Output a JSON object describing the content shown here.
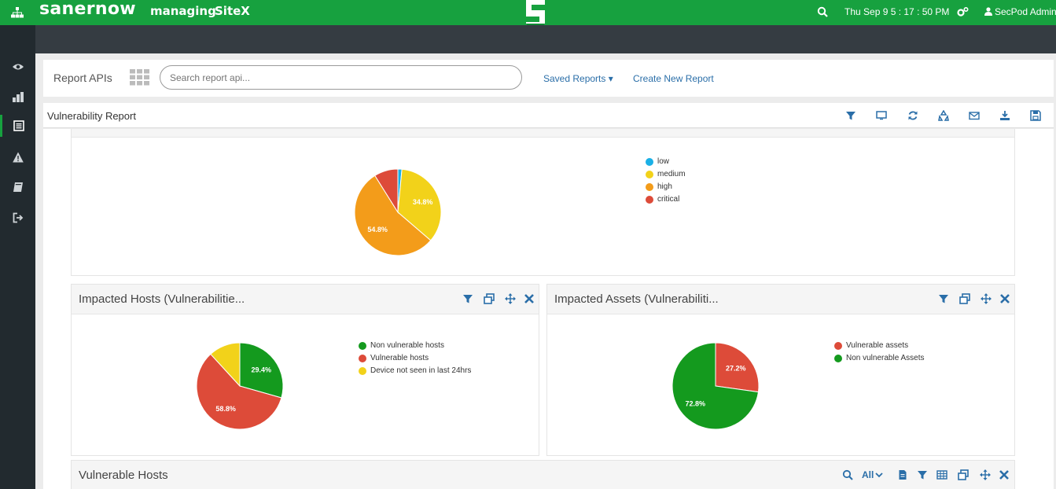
{
  "topbar": {
    "brand": "sanernow",
    "managing": "managing",
    "site": "SiteX",
    "clock": "Thu Sep 9  5 : 17 : 50 PM",
    "user": "SecPod Admin"
  },
  "apibar": {
    "title": "Report APIs",
    "search_placeholder": "Search report api...",
    "saved_reports": "Saved Reports ▾",
    "create_new": "Create New Report"
  },
  "report": {
    "title": "Vulnerability Report"
  },
  "panels": {
    "impacted_hosts": {
      "title": "Impacted Hosts (Vulnerabilitie..."
    },
    "impacted_assets": {
      "title": "Impacted Assets (Vulnerabiliti..."
    },
    "vulnerable_hosts": {
      "title": "Vulnerable Hosts",
      "filter_all": "All"
    }
  },
  "colors": {
    "green": "#17a13f",
    "low": "#1ab0e6",
    "medium": "#f2d21a",
    "high": "#f39c1a",
    "critical": "#dd4b39",
    "pie_green": "#149a1e",
    "pie_red": "#dd4b39",
    "pie_yellow": "#f2d21a",
    "link": "#2a6ea8"
  },
  "chart_data": [
    {
      "type": "pie",
      "title": "",
      "labels": [
        "low",
        "medium",
        "high",
        "critical"
      ],
      "values": [
        1.5,
        34.8,
        54.8,
        8.9
      ],
      "slice_labels": [
        "",
        "34.8%",
        "54.8%",
        ""
      ],
      "colors": [
        "#1ab0e6",
        "#f2d21a",
        "#f39c1a",
        "#dd4b39"
      ],
      "legend": "right"
    },
    {
      "type": "pie",
      "title": "Impacted Hosts (Vulnerabilitie...",
      "labels": [
        "Non vulnerable hosts",
        "Vulnerable hosts",
        "Device not seen in last 24hrs"
      ],
      "values": [
        29.4,
        58.8,
        11.8
      ],
      "slice_labels": [
        "29.4%",
        "58.8%",
        ""
      ],
      "colors": [
        "#149a1e",
        "#dd4b39",
        "#f2d21a"
      ],
      "legend": "right"
    },
    {
      "type": "pie",
      "title": "Impacted Assets (Vulnerabiliti...",
      "labels": [
        "Vulnerable assets",
        "Non vulnerable Assets"
      ],
      "values": [
        27.2,
        72.8
      ],
      "slice_labels": [
        "27.2%",
        "72.8%"
      ],
      "colors": [
        "#dd4b39",
        "#149a1e"
      ],
      "legend": "right"
    }
  ]
}
